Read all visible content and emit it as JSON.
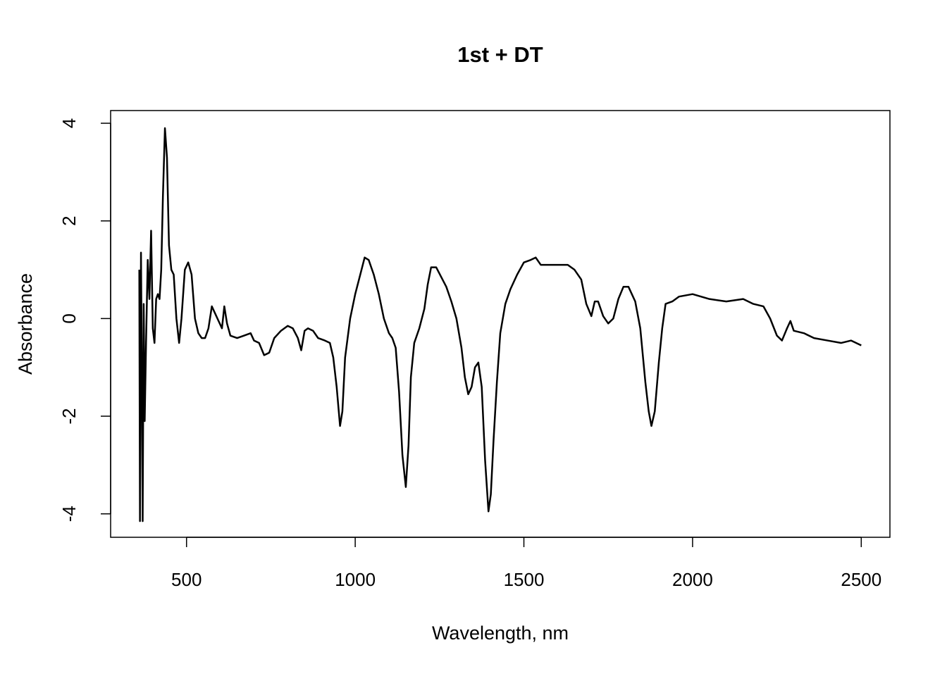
{
  "chart_data": {
    "type": "line",
    "title": "1st + DT",
    "x_label": "Wavelength, nm",
    "y_label": "Absorbance",
    "color": "#000000",
    "x": [
      360,
      362,
      365,
      368,
      370,
      373,
      376,
      380,
      385,
      390,
      395,
      400,
      405,
      410,
      415,
      420,
      425,
      430,
      436,
      442,
      448,
      455,
      462,
      470,
      478,
      485,
      495,
      505,
      515,
      525,
      535,
      545,
      555,
      565,
      575,
      585,
      595,
      605,
      612,
      620,
      630,
      650,
      670,
      690,
      700,
      715,
      730,
      745,
      760,
      780,
      800,
      815,
      830,
      840,
      850,
      860,
      875,
      890,
      910,
      925,
      935,
      945,
      955,
      962,
      970,
      985,
      1000,
      1015,
      1028,
      1040,
      1055,
      1070,
      1085,
      1100,
      1110,
      1120,
      1130,
      1140,
      1150,
      1158,
      1165,
      1175,
      1190,
      1205,
      1215,
      1225,
      1240,
      1255,
      1270,
      1285,
      1300,
      1315,
      1325,
      1335,
      1345,
      1355,
      1365,
      1375,
      1385,
      1395,
      1402,
      1410,
      1420,
      1430,
      1445,
      1460,
      1480,
      1500,
      1520,
      1535,
      1550,
      1570,
      1600,
      1630,
      1650,
      1670,
      1685,
      1700,
      1710,
      1720,
      1735,
      1750,
      1765,
      1780,
      1795,
      1810,
      1830,
      1845,
      1860,
      1870,
      1878,
      1888,
      1900,
      1910,
      1920,
      1940,
      1960,
      2000,
      2050,
      2100,
      2150,
      2180,
      2210,
      2230,
      2250,
      2265,
      2280,
      2290,
      2300,
      2330,
      2360,
      2400,
      2440,
      2470,
      2500
    ],
    "values": [
      1.0,
      -4.15,
      1.35,
      -1.6,
      -4.15,
      0.3,
      -2.1,
      -0.5,
      1.2,
      0.4,
      1.8,
      -0.2,
      -0.5,
      0.4,
      0.5,
      0.4,
      1.0,
      2.5,
      3.9,
      3.3,
      1.5,
      1.0,
      0.9,
      0.0,
      -0.5,
      0.0,
      1.0,
      1.15,
      0.9,
      0.0,
      -0.3,
      -0.4,
      -0.4,
      -0.2,
      0.25,
      0.1,
      -0.05,
      -0.2,
      0.25,
      -0.1,
      -0.35,
      -0.4,
      -0.35,
      -0.3,
      -0.45,
      -0.5,
      -0.75,
      -0.7,
      -0.4,
      -0.25,
      -0.15,
      -0.2,
      -0.4,
      -0.65,
      -0.25,
      -0.2,
      -0.25,
      -0.4,
      -0.45,
      -0.5,
      -0.8,
      -1.4,
      -2.2,
      -1.9,
      -0.8,
      0.0,
      0.5,
      0.9,
      1.25,
      1.2,
      0.9,
      0.5,
      0.0,
      -0.3,
      -0.4,
      -0.6,
      -1.5,
      -2.8,
      -3.45,
      -2.6,
      -1.2,
      -0.5,
      -0.2,
      0.2,
      0.7,
      1.05,
      1.05,
      0.85,
      0.65,
      0.35,
      0.0,
      -0.6,
      -1.2,
      -1.55,
      -1.4,
      -1.0,
      -0.9,
      -1.4,
      -2.9,
      -3.95,
      -3.6,
      -2.5,
      -1.3,
      -0.3,
      0.3,
      0.6,
      0.9,
      1.15,
      1.2,
      1.25,
      1.1,
      1.1,
      1.1,
      1.1,
      1.0,
      0.8,
      0.3,
      0.05,
      0.35,
      0.35,
      0.05,
      -0.1,
      0.0,
      0.4,
      0.65,
      0.65,
      0.35,
      -0.2,
      -1.3,
      -1.9,
      -2.2,
      -1.9,
      -0.9,
      -0.2,
      0.3,
      0.35,
      0.45,
      0.5,
      0.4,
      0.35,
      0.4,
      0.3,
      0.25,
      0.0,
      -0.35,
      -0.45,
      -0.2,
      -0.05,
      -0.25,
      -0.3,
      -0.4,
      -0.45,
      -0.5,
      -0.45,
      -0.55
    ],
    "xlim": [
      275,
      2585
    ],
    "ylim": [
      -4.48,
      4.26
    ],
    "xticks": [
      500,
      1000,
      1500,
      2000,
      2500
    ],
    "yticks": [
      -4,
      -2,
      0,
      2,
      4
    ]
  }
}
